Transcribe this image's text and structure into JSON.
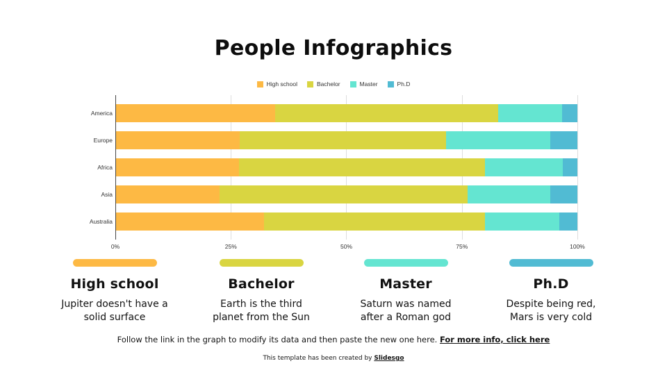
{
  "title": "People Infographics",
  "colors": {
    "high_school": "#FDB944",
    "bachelor": "#D9D541",
    "master": "#64E5D1",
    "phd": "#51BBD3"
  },
  "chart_data": {
    "type": "bar",
    "orientation": "horizontal",
    "stacked": "percent",
    "title": "",
    "xlabel": "",
    "ylabel": "",
    "categories": [
      "America",
      "Europe",
      "Africa",
      "Asia",
      "Australia"
    ],
    "series": [
      {
        "name": "High school",
        "color": "#FDB944",
        "values": [
          34.6,
          26.9,
          26.8,
          22.6,
          32.2
        ]
      },
      {
        "name": "Bachelor",
        "color": "#D9D541",
        "values": [
          48.3,
          44.7,
          53.2,
          53.6,
          47.8
        ]
      },
      {
        "name": "Master",
        "color": "#64E5D1",
        "values": [
          13.8,
          22.5,
          16.8,
          17.9,
          16.1
        ]
      },
      {
        "name": "Ph.D",
        "color": "#51BBD3",
        "values": [
          3.3,
          5.9,
          3.2,
          5.9,
          3.9
        ]
      }
    ],
    "x_ticks": [
      "0%",
      "25%",
      "50%",
      "75%",
      "100%"
    ],
    "xlim": [
      0,
      100
    ],
    "grid": true,
    "legend_position": "top"
  },
  "legend": [
    {
      "label": "High school"
    },
    {
      "label": "Bachelor"
    },
    {
      "label": "Master"
    },
    {
      "label": "Ph.D"
    }
  ],
  "cards": [
    {
      "title": "High school",
      "desc_line1": "Jupiter doesn't have a",
      "desc_line2": "solid surface"
    },
    {
      "title": "Bachelor",
      "desc_line1": "Earth is the third",
      "desc_line2": "planet from the Sun"
    },
    {
      "title": "Master",
      "desc_line1": "Saturn was named",
      "desc_line2": "after a Roman god"
    },
    {
      "title": "Ph.D",
      "desc_line1": "Despite being red,",
      "desc_line2": "Mars is very cold"
    }
  ],
  "footer": {
    "note": "Follow the link in the graph to modify its data and then paste the new one here. ",
    "link": "For more info, click here",
    "credit": "This template has been created by ",
    "credit_link": "Slidesgo"
  }
}
